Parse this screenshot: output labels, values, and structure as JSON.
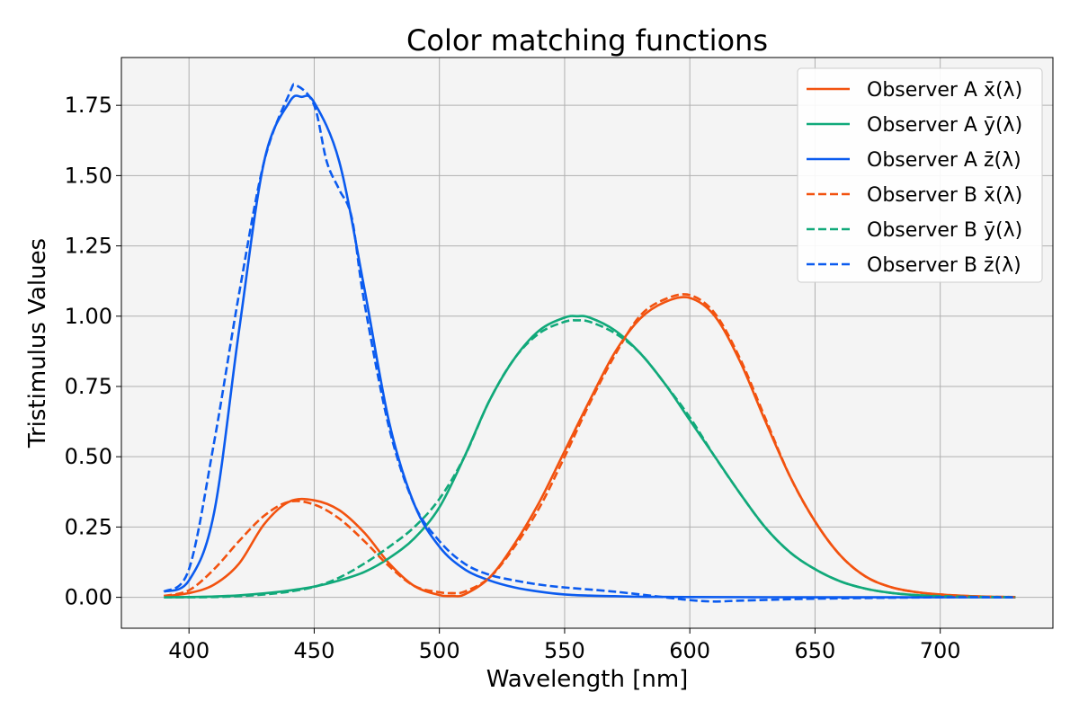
{
  "chart_data": {
    "type": "line",
    "title": "Color matching functions",
    "xlabel": "Wavelength [nm]",
    "ylabel": "Tristimulus Values",
    "xlim": [
      373,
      745
    ],
    "ylim": [
      -0.11,
      1.92
    ],
    "xticks": [
      400,
      450,
      500,
      550,
      600,
      650,
      700
    ],
    "xtick_labels": [
      "400",
      "450",
      "500",
      "550",
      "600",
      "650",
      "700"
    ],
    "yticks": [
      0.0,
      0.25,
      0.5,
      0.75,
      1.0,
      1.25,
      1.5,
      1.75
    ],
    "ytick_labels": [
      "0.00",
      "0.25",
      "0.50",
      "0.75",
      "1.00",
      "1.25",
      "1.50",
      "1.75"
    ],
    "grid": true,
    "plot_background": "#f4f4f4",
    "legend_position": "top-right",
    "legend_labels": [
      "Observer A x̄(λ)",
      "Observer A ȳ(λ)",
      "Observer A z̄(λ)",
      "Observer B x̄(λ)",
      "Observer B ȳ(λ)",
      "Observer B z̄(λ)"
    ],
    "series": [
      {
        "name": "Observer A x̄(λ)",
        "color": "#f2520f",
        "style": "solid",
        "x": [
          390,
          400,
          410,
          420,
          430,
          440,
          450,
          460,
          470,
          480,
          490,
          500,
          505,
          510,
          520,
          530,
          540,
          550,
          560,
          570,
          580,
          590,
          600,
          610,
          620,
          630,
          640,
          650,
          660,
          670,
          680,
          690,
          700,
          710,
          720,
          730
        ],
        "y": [
          0.004,
          0.015,
          0.045,
          0.12,
          0.26,
          0.34,
          0.345,
          0.31,
          0.23,
          0.12,
          0.04,
          0.008,
          0.005,
          0.01,
          0.07,
          0.19,
          0.34,
          0.52,
          0.7,
          0.87,
          0.99,
          1.05,
          1.065,
          1.0,
          0.84,
          0.63,
          0.43,
          0.27,
          0.15,
          0.075,
          0.037,
          0.019,
          0.01,
          0.005,
          0.002,
          0.001
        ]
      },
      {
        "name": "Observer A ȳ(λ)",
        "color": "#11a97a",
        "style": "solid",
        "x": [
          390,
          400,
          410,
          420,
          430,
          440,
          450,
          460,
          470,
          480,
          490,
          500,
          510,
          520,
          530,
          540,
          550,
          555,
          560,
          570,
          580,
          590,
          600,
          610,
          620,
          630,
          640,
          650,
          660,
          670,
          680,
          690,
          700,
          710,
          720,
          730
        ],
        "y": [
          0.0,
          0.001,
          0.003,
          0.007,
          0.014,
          0.024,
          0.038,
          0.06,
          0.09,
          0.14,
          0.21,
          0.32,
          0.5,
          0.7,
          0.85,
          0.95,
          0.995,
          1.0,
          0.995,
          0.95,
          0.87,
          0.76,
          0.63,
          0.5,
          0.37,
          0.25,
          0.16,
          0.1,
          0.057,
          0.031,
          0.016,
          0.008,
          0.004,
          0.002,
          0.001,
          0.0005
        ]
      },
      {
        "name": "Observer A z̄(λ)",
        "color": "#0b5bef",
        "style": "solid",
        "x": [
          390,
          400,
          410,
          420,
          430,
          440,
          445,
          450,
          460,
          470,
          480,
          490,
          500,
          510,
          520,
          530,
          540,
          550,
          560,
          570,
          580,
          600,
          650,
          700,
          730
        ],
        "y": [
          0.02,
          0.06,
          0.3,
          0.95,
          1.55,
          1.76,
          1.78,
          1.76,
          1.55,
          1.1,
          0.62,
          0.33,
          0.18,
          0.1,
          0.06,
          0.035,
          0.02,
          0.01,
          0.006,
          0.004,
          0.002,
          0.001,
          0.0,
          0.0,
          0.0
        ]
      },
      {
        "name": "Observer B x̄(λ)",
        "color": "#f2520f",
        "style": "dashed",
        "x": [
          390,
          400,
          410,
          420,
          430,
          440,
          450,
          460,
          470,
          480,
          490,
          500,
          505,
          510,
          520,
          530,
          540,
          550,
          560,
          570,
          580,
          590,
          600,
          610,
          620,
          630,
          640,
          650,
          660,
          670,
          680,
          690,
          700,
          710,
          720,
          730
        ],
        "y": [
          0.005,
          0.025,
          0.1,
          0.2,
          0.29,
          0.34,
          0.33,
          0.28,
          0.2,
          0.11,
          0.04,
          0.018,
          0.015,
          0.02,
          0.07,
          0.18,
          0.32,
          0.5,
          0.69,
          0.86,
          1.0,
          1.06,
          1.075,
          1.01,
          0.85,
          0.64,
          0.43,
          0.27,
          0.15,
          0.075,
          0.037,
          0.019,
          0.01,
          0.005,
          0.002,
          0.001
        ]
      },
      {
        "name": "Observer B ȳ(λ)",
        "color": "#11a97a",
        "style": "dashed",
        "x": [
          390,
          400,
          410,
          420,
          430,
          440,
          450,
          460,
          470,
          480,
          490,
          500,
          510,
          520,
          530,
          540,
          550,
          555,
          560,
          570,
          580,
          590,
          600,
          610,
          620,
          630,
          640,
          650,
          660,
          670,
          680,
          690,
          700,
          710,
          720,
          730
        ],
        "y": [
          0.0,
          0.0,
          0.001,
          0.004,
          0.01,
          0.02,
          0.037,
          0.07,
          0.12,
          0.18,
          0.25,
          0.35,
          0.5,
          0.7,
          0.85,
          0.94,
          0.98,
          0.985,
          0.98,
          0.94,
          0.87,
          0.76,
          0.64,
          0.5,
          0.37,
          0.25,
          0.16,
          0.1,
          0.057,
          0.031,
          0.016,
          0.008,
          0.004,
          0.002,
          0.001,
          0.0005
        ]
      },
      {
        "name": "Observer B z̄(λ)",
        "color": "#0b5bef",
        "style": "dashed",
        "x": [
          390,
          400,
          410,
          420,
          430,
          440,
          443,
          450,
          455,
          460,
          465,
          470,
          480,
          490,
          500,
          510,
          520,
          530,
          540,
          550,
          570,
          590,
          600,
          610,
          620,
          650,
          700,
          730
        ],
        "y": [
          0.02,
          0.1,
          0.55,
          1.08,
          1.55,
          1.79,
          1.82,
          1.75,
          1.55,
          1.45,
          1.35,
          1.05,
          0.6,
          0.33,
          0.2,
          0.12,
          0.08,
          0.06,
          0.045,
          0.035,
          0.02,
          0.0,
          -0.01,
          -0.015,
          -0.012,
          -0.005,
          0.0,
          0.0
        ]
      }
    ]
  }
}
